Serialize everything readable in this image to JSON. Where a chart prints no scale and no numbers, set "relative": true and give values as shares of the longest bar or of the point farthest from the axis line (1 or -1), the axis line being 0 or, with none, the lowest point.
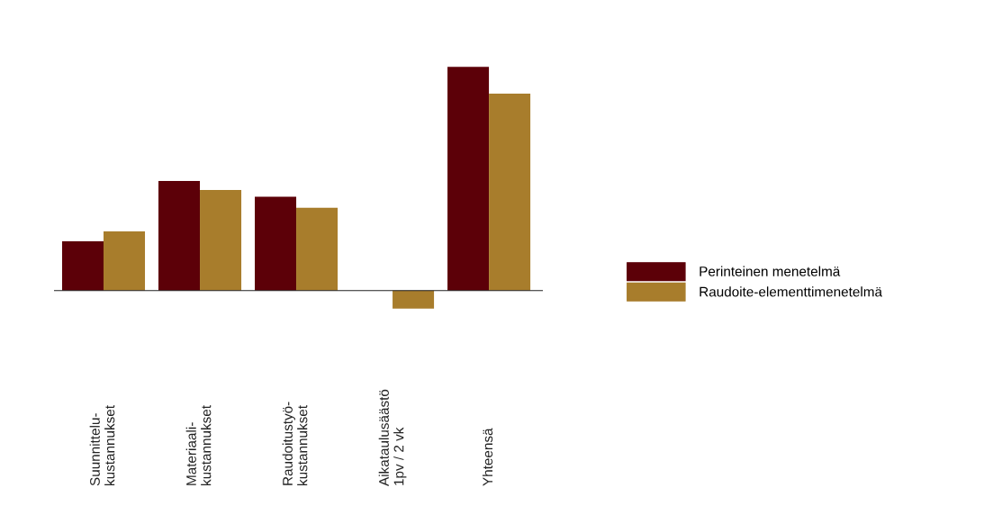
{
  "chart_data": {
    "type": "bar",
    "relative": true,
    "categories": [
      "Suunnittelu-\nkustannukset",
      "Materiaali-\nkustannukset",
      "Raudoitustyö-\nkustannukset",
      "Aikataulusäästö\n1pv / 2 vk",
      "Yhteensä"
    ],
    "series": [
      {
        "name": "Perinteinen menetelmä",
        "color": "#5c0008",
        "values": [
          0.22,
          0.49,
          0.42,
          null,
          1
        ]
      },
      {
        "name": "Raudoite-elementtimenetelmä",
        "color": "#a87d2c",
        "values": [
          0.265,
          0.45,
          0.37,
          -0.08,
          0.88
        ]
      }
    ],
    "legend": "right"
  }
}
